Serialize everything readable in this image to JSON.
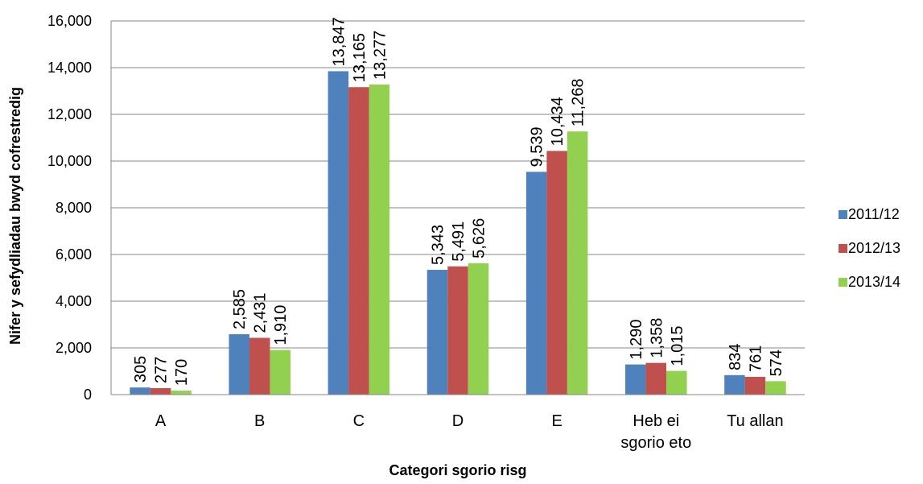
{
  "chart_data": {
    "type": "bar",
    "categories": [
      "A",
      "B",
      "C",
      "D",
      "E",
      "Heb ei sgorio eto",
      "Tu allan"
    ],
    "series": [
      {
        "name": "2011/12",
        "color": "#4F81BD",
        "values": [
          305,
          2585,
          13847,
          5343,
          9539,
          1290,
          834
        ]
      },
      {
        "name": "2012/13",
        "color": "#C0504D",
        "values": [
          277,
          2431,
          13165,
          5491,
          10434,
          1358,
          761
        ]
      },
      {
        "name": "2013/14",
        "color": "#92D050",
        "values": [
          170,
          1910,
          13277,
          5626,
          11268,
          1015,
          574
        ]
      }
    ],
    "data_labels": [
      [
        "305",
        "2,585",
        "13,847",
        "5,343",
        "9,539",
        "1,290",
        "834"
      ],
      [
        "277",
        "2,431",
        "13,165",
        "5,491",
        "10,434",
        "1,358",
        "761"
      ],
      [
        "170",
        "1,910",
        "13,277",
        "5,626",
        "11,268",
        "1,015",
        "574"
      ]
    ],
    "category_label_lines": [
      [
        "A"
      ],
      [
        "B"
      ],
      [
        "C"
      ],
      [
        "D"
      ],
      [
        "E"
      ],
      [
        "Heb ei",
        "sgorio eto"
      ],
      [
        "Tu allan"
      ]
    ],
    "yticks": [
      "0",
      "2,000",
      "4,000",
      "6,000",
      "8,000",
      "10,000",
      "12,000",
      "14,000",
      "16,000"
    ],
    "xlabel": "Categori sgorio risg",
    "ylabel": "Nifer y sefydliadau bwyd cofrestredig",
    "ylim": [
      0,
      16000
    ],
    "grid": true,
    "legend_position": "right"
  }
}
